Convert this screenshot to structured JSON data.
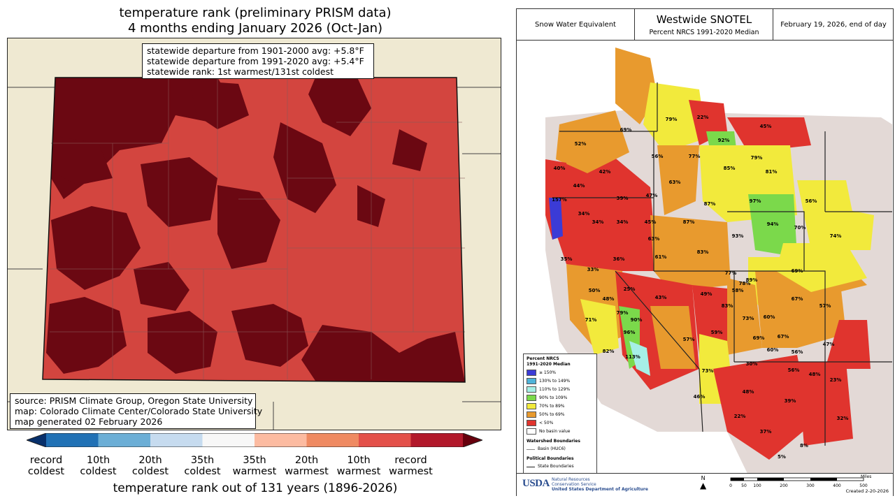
{
  "left": {
    "title_line1": "temperature rank (preliminary PRISM data)",
    "title_line2": "4 months ending January 2026 (Oct-Jan)",
    "stats": [
      "statewide departure from 1901-2000 avg: +5.8°F",
      "statewide departure from 1991-2020 avg: +5.4°F",
      "statewide rank: 1st warmest/131st coldest"
    ],
    "source": [
      "source: PRISM Climate Group, Oregon State University",
      "map: Colorado Climate Center/Colorado State University",
      "map generated 02 February 2026"
    ],
    "scale_colors": [
      "#08306b",
      "#2171b5",
      "#6baed6",
      "#c6dbef",
      "#f7f7f7",
      "#fcbba1",
      "#ef8a62",
      "#e3504a",
      "#b2182b",
      "#67000d"
    ],
    "scale_labels": [
      {
        "line1": "record",
        "line2": "coldest"
      },
      {
        "line1": "10th",
        "line2": "coldest"
      },
      {
        "line1": "20th",
        "line2": "coldest"
      },
      {
        "line1": "35th",
        "line2": "coldest"
      },
      {
        "line1": "35th",
        "line2": "warmest"
      },
      {
        "line1": "20th",
        "line2": "warmest"
      },
      {
        "line1": "10th",
        "line2": "warmest"
      },
      {
        "line1": "record",
        "line2": "warmest"
      }
    ],
    "scale_title": "temperature rank out of 131 years (1896-2026)",
    "colors": {
      "record_warm": "#6b0812",
      "tenth_warm": "#d3453f",
      "mid_warm": "#c23a36",
      "land_bg": "#efe9d2"
    }
  },
  "right": {
    "header_left": "Snow Water Equivalent",
    "header_title": "Westwide SNOTEL",
    "header_subtitle": "Percent NRCS 1991-2020 Median",
    "header_right": "February 19, 2026, end of day",
    "legend": {
      "title_line1": "Percent NRCS",
      "title_line2": "1991-2020 Median",
      "classes": [
        {
          "label": "≥ 150%",
          "color": "#3b3bd6"
        },
        {
          "label": "130% to 149%",
          "color": "#4fb3d9"
        },
        {
          "label": "110% to 129%",
          "color": "#a6efe6"
        },
        {
          "label": "90% to 109%",
          "color": "#7bd94b"
        },
        {
          "label": "70% to 89%",
          "color": "#f2ea3c"
        },
        {
          "label": "50% to 69%",
          "color": "#e89a2e"
        },
        {
          "label": "< 50%",
          "color": "#e0342e"
        },
        {
          "label": "No basin value",
          "color": "#ffffff"
        }
      ],
      "watershed_title": "Watershed Boundaries",
      "watershed_item": "Basin (HUC6)",
      "political_title": "Political Boundaries",
      "political_item": "State Boundaries"
    },
    "percents": [
      "79%",
      "22%",
      "45%",
      "69%",
      "92%",
      "52%",
      "56%",
      "77%",
      "79%",
      "85%",
      "81%",
      "40%",
      "42%",
      "63%",
      "44%",
      "157%",
      "39%",
      "47%",
      "97%",
      "87%",
      "56%",
      "34%",
      "34%",
      "34%",
      "45%",
      "87%",
      "63%",
      "94%",
      "70%",
      "93%",
      "74%",
      "61%",
      "83%",
      "35%",
      "36%",
      "33%",
      "77%",
      "89%",
      "69%",
      "50%",
      "48%",
      "25%",
      "43%",
      "49%",
      "58%",
      "78%",
      "67%",
      "57%",
      "83%",
      "60%",
      "71%",
      "79%",
      "90%",
      "73%",
      "59%",
      "96%",
      "57%",
      "69%",
      "67%",
      "47%",
      "82%",
      "60%",
      "113%",
      "56%",
      "30%",
      "73%",
      "56%",
      "48%",
      "23%",
      "46%",
      "48%",
      "39%",
      "22%",
      "32%",
      "37%",
      "8%",
      "5%"
    ],
    "footer": {
      "usda": "USDA",
      "nrcs_line1": "Natural Resources",
      "nrcs_line2": "Conservation Service",
      "nrcs_line3": "United States Department of Agriculture",
      "north": "N",
      "scale_ticks": [
        "0",
        "50",
        "100",
        "200",
        "300",
        "400",
        "500"
      ],
      "scale_unit": "Miles",
      "created": "Created 2-20-2026"
    },
    "colors": {
      "terrain": "#e3d9d6",
      "water": "#bcd4e6"
    }
  }
}
